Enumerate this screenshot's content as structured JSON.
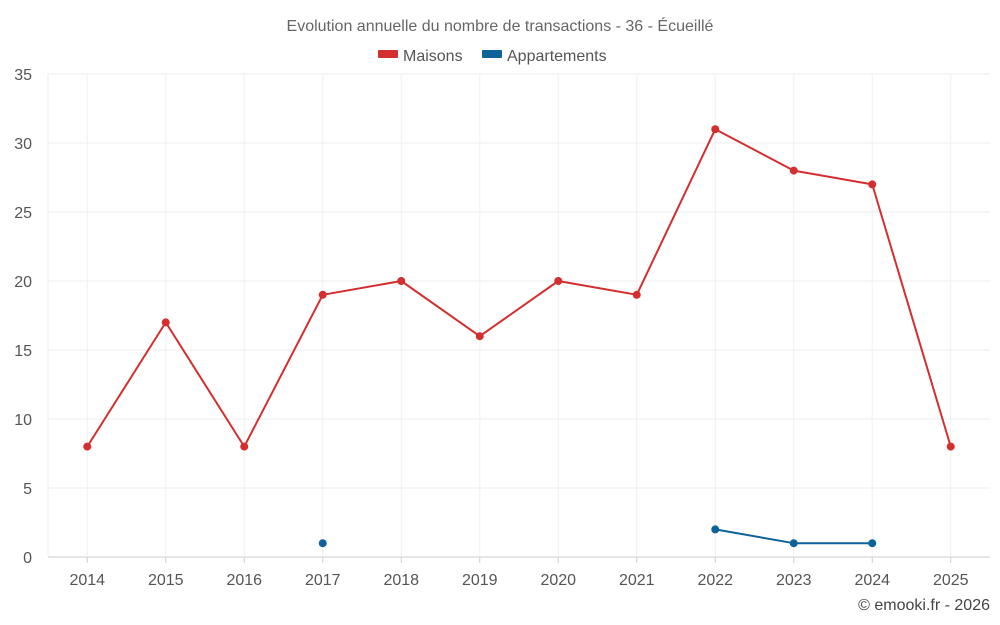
{
  "chart_data": {
    "type": "line",
    "title": "Evolution annuelle du nombre de transactions - 36 - Écueillé",
    "categories": [
      "2014",
      "2015",
      "2016",
      "2017",
      "2018",
      "2019",
      "2020",
      "2021",
      "2022",
      "2023",
      "2024",
      "2025"
    ],
    "ylim": [
      0,
      35
    ],
    "yticks": [
      0,
      5,
      10,
      15,
      20,
      25,
      30,
      35
    ],
    "grid": true,
    "legend_position": "top-center",
    "series": [
      {
        "name": "Maisons",
        "color": "#d32f2f",
        "values": [
          8,
          17,
          8,
          19,
          20,
          16,
          20,
          19,
          31,
          28,
          27,
          8
        ]
      },
      {
        "name": "Appartements",
        "color": "#0d6299",
        "values": [
          null,
          null,
          null,
          1,
          null,
          null,
          null,
          null,
          2,
          1,
          1,
          null
        ]
      }
    ],
    "credit": "© emooki.fr - 2026"
  }
}
